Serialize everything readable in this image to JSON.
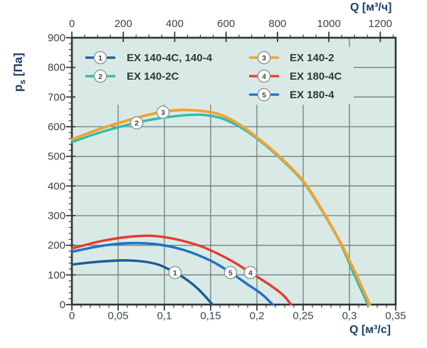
{
  "page": {
    "background": "#ffffff"
  },
  "colors": {
    "plot_bg": "#d9eae6",
    "grid": "#6f807c",
    "frame": "#2e3635",
    "tick_text": "#3f4446",
    "axis_title": "#1a3e68",
    "legend_text": "#33383a",
    "marker_ring": "#8f9896",
    "marker_fill": "#fdfdfd",
    "marker_text": "#45494b"
  },
  "chart_data": {
    "type": "line",
    "title": "",
    "grid": true,
    "legend_position": "top-left-inside",
    "axes": {
      "x_bottom": {
        "label": "Q [м³/с]",
        "range": [
          0,
          0.35
        ],
        "major_ticks": [
          0,
          0.05,
          0.1,
          0.15,
          0.2,
          0.25,
          0.3,
          0.35
        ],
        "tick_labels": [
          "0",
          "0,05",
          "0,1",
          "0,15",
          "0,2",
          "0,25",
          "0,3",
          "0,35"
        ],
        "minor_step": 0.01
      },
      "x_top": {
        "label": "Q [м³/ч]",
        "unit_scale": 3600,
        "range": [
          0,
          1260
        ],
        "major_ticks": [
          0,
          200,
          400,
          600,
          800,
          1000,
          1200
        ],
        "tick_labels": [
          "0",
          "200",
          "400",
          "600",
          "800",
          "1000",
          "1200"
        ],
        "minor_step": 50
      },
      "y_left": {
        "label_main": "p",
        "label_sub": "s",
        "label_unit": " [Па]",
        "range": [
          0,
          900
        ],
        "major_ticks": [
          0,
          100,
          200,
          300,
          400,
          500,
          600,
          700,
          800,
          900
        ],
        "tick_labels": [
          "0",
          "100",
          "200",
          "300",
          "400",
          "500",
          "600",
          "700",
          "800",
          "900"
        ],
        "minor_step": 20
      }
    },
    "series": [
      {
        "number": "1",
        "name": "EX 140-4C, 140-4",
        "color": "#1d5b9d",
        "width": 3.4,
        "marker_q": 0.1115,
        "points": [
          [
            0,
            135
          ],
          [
            0.02,
            142
          ],
          [
            0.04,
            147
          ],
          [
            0.06,
            149
          ],
          [
            0.08,
            144
          ],
          [
            0.095,
            133
          ],
          [
            0.1115,
            108
          ],
          [
            0.125,
            82
          ],
          [
            0.138,
            48
          ],
          [
            0.152,
            0
          ]
        ]
      },
      {
        "number": "2",
        "name": "EX 140-2C",
        "color": "#2dbcab",
        "width": 3.3,
        "marker_q": 0.07,
        "points": [
          [
            0,
            548
          ],
          [
            0.03,
            580
          ],
          [
            0.06,
            606
          ],
          [
            0.09,
            626
          ],
          [
            0.12,
            638
          ],
          [
            0.14,
            640
          ],
          [
            0.16,
            630
          ],
          [
            0.18,
            602
          ],
          [
            0.2,
            560
          ],
          [
            0.225,
            494
          ],
          [
            0.25,
            414
          ],
          [
            0.27,
            318
          ],
          [
            0.29,
            208
          ],
          [
            0.305,
            102
          ],
          [
            0.32,
            0
          ]
        ]
      },
      {
        "number": "3",
        "name": "EX 140-2",
        "color": "#f2a233",
        "width": 3.8,
        "marker_q": 0.0985,
        "points": [
          [
            0,
            557
          ],
          [
            0.03,
            592
          ],
          [
            0.06,
            621
          ],
          [
            0.09,
            645
          ],
          [
            0.115,
            656
          ],
          [
            0.14,
            653
          ],
          [
            0.16,
            641
          ],
          [
            0.18,
            610
          ],
          [
            0.2,
            564
          ],
          [
            0.225,
            498
          ],
          [
            0.25,
            417
          ],
          [
            0.27,
            321
          ],
          [
            0.29,
            211
          ],
          [
            0.307,
            104
          ],
          [
            0.322,
            0
          ]
        ]
      },
      {
        "number": "4",
        "name": "EX 180-4C",
        "color": "#e63c30",
        "width": 3.4,
        "marker_q": 0.193,
        "points": [
          [
            0,
            189
          ],
          [
            0.03,
            213
          ],
          [
            0.06,
            228
          ],
          [
            0.085,
            232
          ],
          [
            0.11,
            222
          ],
          [
            0.14,
            196
          ],
          [
            0.17,
            152
          ],
          [
            0.193,
            108
          ],
          [
            0.215,
            64
          ],
          [
            0.228,
            33
          ],
          [
            0.237,
            0
          ]
        ]
      },
      {
        "number": "5",
        "name": "EX 180-4",
        "color": "#1f70ca",
        "width": 3.4,
        "marker_q": 0.1715,
        "points": [
          [
            0,
            178
          ],
          [
            0.03,
            197
          ],
          [
            0.06,
            207
          ],
          [
            0.09,
            204
          ],
          [
            0.12,
            185
          ],
          [
            0.15,
            148
          ],
          [
            0.1715,
            108
          ],
          [
            0.19,
            68
          ],
          [
            0.205,
            36
          ],
          [
            0.217,
            0
          ]
        ]
      }
    ]
  }
}
